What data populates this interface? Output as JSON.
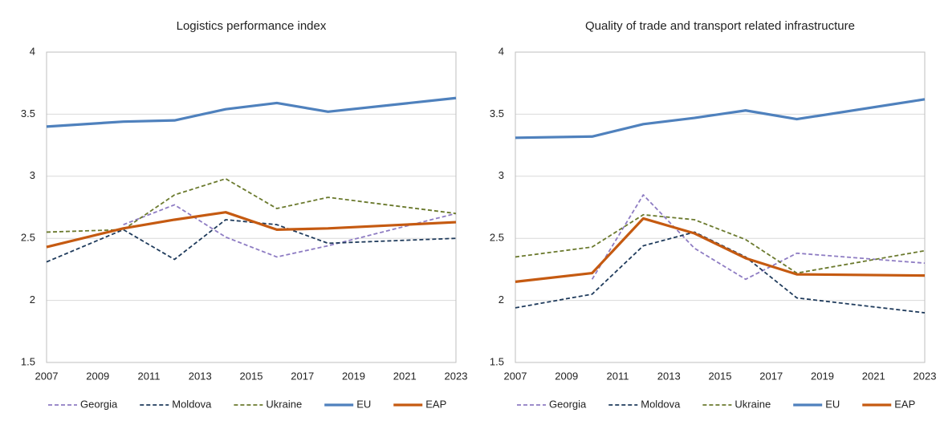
{
  "chart_data": [
    {
      "type": "line",
      "title": "Logistics performance index",
      "x": [
        2007,
        2010,
        2012,
        2014,
        2016,
        2018,
        2023
      ],
      "xlim": [
        2007,
        2023
      ],
      "xticks": [
        2007,
        2009,
        2011,
        2013,
        2015,
        2017,
        2019,
        2021,
        2023
      ],
      "ylim": [
        1.5,
        4
      ],
      "yticks": [
        1.5,
        2,
        2.5,
        3,
        3.5,
        4
      ],
      "grid": true,
      "legend": "bottom",
      "series": [
        {
          "name": "Georgia",
          "color": "#8e7cc3",
          "dashed": true,
          "values": [
            null,
            2.61,
            2.77,
            2.51,
            2.35,
            2.44,
            2.7
          ]
        },
        {
          "name": "Moldova",
          "color": "#1f3b5c",
          "dashed": true,
          "values": [
            2.31,
            2.57,
            2.33,
            2.65,
            2.61,
            2.46,
            2.5
          ]
        },
        {
          "name": "Ukraine",
          "color": "#6b7a2e",
          "dashed": true,
          "values": [
            2.55,
            2.57,
            2.85,
            2.98,
            2.74,
            2.83,
            2.7
          ]
        },
        {
          "name": "EU",
          "color": "#4f81bd",
          "dashed": false,
          "values": [
            3.4,
            3.44,
            3.45,
            3.54,
            3.59,
            3.52,
            3.63
          ]
        },
        {
          "name": "EAP",
          "color": "#c55a11",
          "dashed": false,
          "values": [
            2.43,
            2.58,
            2.65,
            2.71,
            2.57,
            2.58,
            2.63
          ]
        }
      ]
    },
    {
      "type": "line",
      "title": "Quality of trade and transport related infrastructure",
      "x": [
        2007,
        2010,
        2012,
        2014,
        2016,
        2018,
        2023
      ],
      "xlim": [
        2007,
        2023
      ],
      "xticks": [
        2007,
        2009,
        2011,
        2013,
        2015,
        2017,
        2019,
        2021,
        2023
      ],
      "ylim": [
        1.5,
        4
      ],
      "yticks": [
        1.5,
        2,
        2.5,
        3,
        3.5,
        4
      ],
      "grid": true,
      "legend": "bottom",
      "series": [
        {
          "name": "Georgia",
          "color": "#8e7cc3",
          "dashed": true,
          "values": [
            null,
            2.17,
            2.85,
            2.42,
            2.17,
            2.38,
            2.3
          ]
        },
        {
          "name": "Moldova",
          "color": "#1f3b5c",
          "dashed": true,
          "values": [
            1.94,
            2.05,
            2.44,
            2.55,
            2.35,
            2.02,
            1.9
          ]
        },
        {
          "name": "Ukraine",
          "color": "#6b7a2e",
          "dashed": true,
          "values": [
            2.35,
            2.43,
            2.69,
            2.65,
            2.49,
            2.22,
            2.4
          ]
        },
        {
          "name": "EU",
          "color": "#4f81bd",
          "dashed": false,
          "values": [
            3.31,
            3.32,
            3.42,
            3.47,
            3.53,
            3.46,
            3.62
          ]
        },
        {
          "name": "EAP",
          "color": "#c55a11",
          "dashed": false,
          "values": [
            2.15,
            2.22,
            2.66,
            2.54,
            2.34,
            2.21,
            2.2
          ]
        }
      ]
    }
  ]
}
